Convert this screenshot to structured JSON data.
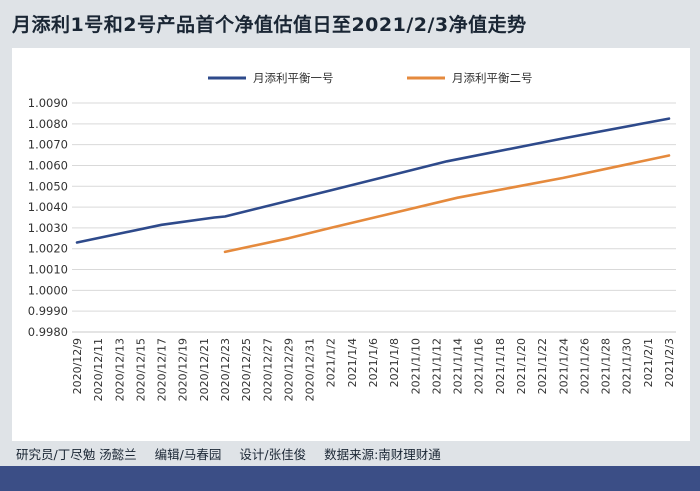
{
  "header": {
    "title": "月添利1号和2号产品首个净值估值日至2021/2/3净值走势"
  },
  "footer": {
    "researcher": "研究员/丁尽勉 汤懿兰",
    "editor": "编辑/马春园",
    "design": "设计/张佳俊",
    "source": "数据来源:南财理财通"
  },
  "chart_data": {
    "type": "line",
    "title": "",
    "xlabel": "",
    "ylabel": "",
    "ylim": [
      0.998,
      1.009
    ],
    "yticks": [
      0.998,
      0.999,
      1.0,
      1.001,
      1.002,
      1.003,
      1.004,
      1.005,
      1.006,
      1.007,
      1.008,
      1.009
    ],
    "ytick_labels": [
      "0.9980",
      "0.9990",
      "1.0000",
      "1.0010",
      "1.0020",
      "1.0030",
      "1.0040",
      "1.0050",
      "1.0060",
      "1.0070",
      "1.0080",
      "1.0090"
    ],
    "x_tick_labels": [
      "2020/12/9",
      "2020/12/11",
      "2020/12/13",
      "2020/12/15",
      "2020/12/17",
      "2020/12/19",
      "2020/12/21",
      "2020/12/23",
      "2020/12/25",
      "2020/12/27",
      "2020/12/29",
      "2020/12/31",
      "2021/1/2",
      "2021/1/4",
      "2021/1/6",
      "2021/1/8",
      "2021/1/10",
      "2021/1/12",
      "2021/1/14",
      "2021/1/16",
      "2021/1/18",
      "2021/1/20",
      "2021/1/22",
      "2021/1/24",
      "2021/1/26",
      "2021/1/28",
      "2021/1/30",
      "2021/2/1",
      "2021/2/3"
    ],
    "grid": true,
    "legend": "top-center",
    "series": [
      {
        "name": "月添利平衡一号",
        "color": "#2e4a8b",
        "points": [
          [
            "2020/12/9",
            1.0023
          ],
          [
            "2020/12/17",
            1.00315
          ],
          [
            "2020/12/22",
            1.0035
          ],
          [
            "2020/12/23",
            1.00355
          ],
          [
            "2021/1/2",
            1.0048
          ],
          [
            "2021/1/13",
            1.0062
          ],
          [
            "2021/1/24",
            1.0073
          ],
          [
            "2021/2/3",
            1.00825
          ]
        ]
      },
      {
        "name": "月添利平衡二号",
        "color": "#e58a3d",
        "points": [
          [
            "2020/12/23",
            1.00185
          ],
          [
            "2020/12/29",
            1.0025
          ],
          [
            "2021/1/2",
            1.003
          ],
          [
            "2021/1/14",
            1.00445
          ],
          [
            "2021/1/24",
            1.0054
          ],
          [
            "2021/2/3",
            1.00648
          ]
        ]
      }
    ]
  }
}
